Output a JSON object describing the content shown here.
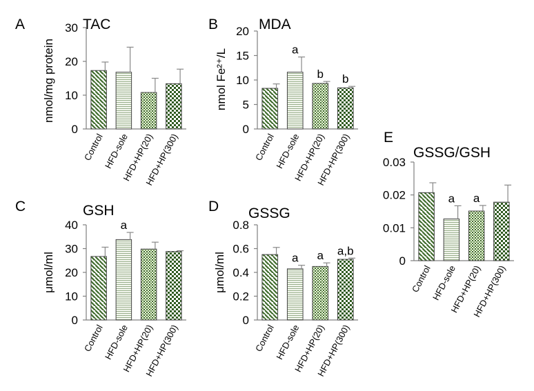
{
  "colors": {
    "bar_green": "#4f7a3a",
    "bar_fill": "#eef4e4",
    "axis": "#7f7f7f",
    "error_bar": "#888888"
  },
  "chart_data": [
    {
      "panel": "A",
      "type": "bar",
      "title": "TAC",
      "ylabel": "nmol/mg protein",
      "categories": [
        "Control",
        "HFD-sole",
        "HFD+HP(20)",
        "HFD+HP(300)"
      ],
      "values": [
        17.3,
        16.8,
        10.8,
        13.4
      ],
      "errors": [
        2.5,
        7.4,
        4.2,
        4.3
      ],
      "significance": [
        "",
        "",
        "",
        ""
      ],
      "ylim": [
        0,
        30
      ],
      "yticks": [
        "0",
        "10",
        "20",
        "30"
      ]
    },
    {
      "panel": "B",
      "type": "bar",
      "title": "MDA",
      "ylabel": "nmol Fe²⁺/L",
      "categories": [
        "Control",
        "HFD-sole",
        "HFD+HP(20)",
        "HFD+HP(300)"
      ],
      "values": [
        8.3,
        11.6,
        9.3,
        8.4
      ],
      "errors": [
        0.9,
        3.1,
        0.4,
        0.3
      ],
      "significance": [
        "",
        "a",
        "b",
        "b"
      ],
      "ylim": [
        0,
        20
      ],
      "yticks": [
        "0",
        "5",
        "10",
        "15",
        "20"
      ]
    },
    {
      "panel": "C",
      "type": "bar",
      "title": "GSH",
      "ylabel": "μmol/ml",
      "categories": [
        "Control",
        "HFD-sole",
        "HFD+HP(20)",
        "HFD+HP(300)"
      ],
      "values": [
        26.7,
        33.8,
        29.8,
        28.8
      ],
      "errors": [
        3.9,
        3.0,
        2.9,
        0.3
      ],
      "significance": [
        "",
        "a",
        "",
        ""
      ],
      "ylim": [
        0,
        40
      ],
      "yticks": [
        "0",
        "10",
        "20",
        "30",
        "40"
      ]
    },
    {
      "panel": "D",
      "type": "bar",
      "title": "GSSG",
      "ylabel": "μmol/ml",
      "categories": [
        "Control",
        "HFD-sole",
        "HFD+HP(20)",
        "HFD+HP(300)"
      ],
      "values": [
        0.55,
        0.43,
        0.45,
        0.51
      ],
      "errors": [
        0.06,
        0.03,
        0.03,
        0.01
      ],
      "significance": [
        "",
        "a",
        "a",
        "a,b"
      ],
      "ylim": [
        0,
        0.8
      ],
      "yticks": [
        "0",
        "0.2",
        "0.4",
        "0.6",
        "0.8"
      ]
    },
    {
      "panel": "E",
      "type": "bar",
      "title": "GSSG/GSH",
      "ylabel": "",
      "categories": [
        "Control",
        "HFD-sole",
        "HFD+HP(20)",
        "HFD+HP(300)"
      ],
      "values": [
        0.0207,
        0.0127,
        0.0151,
        0.0178
      ],
      "errors": [
        0.003,
        0.004,
        0.0017,
        0.0052
      ],
      "significance": [
        "",
        "a",
        "a",
        ""
      ],
      "ylim": [
        0,
        0.03
      ],
      "yticks": [
        "0",
        "0.01",
        "0.02",
        "0.03"
      ]
    }
  ]
}
